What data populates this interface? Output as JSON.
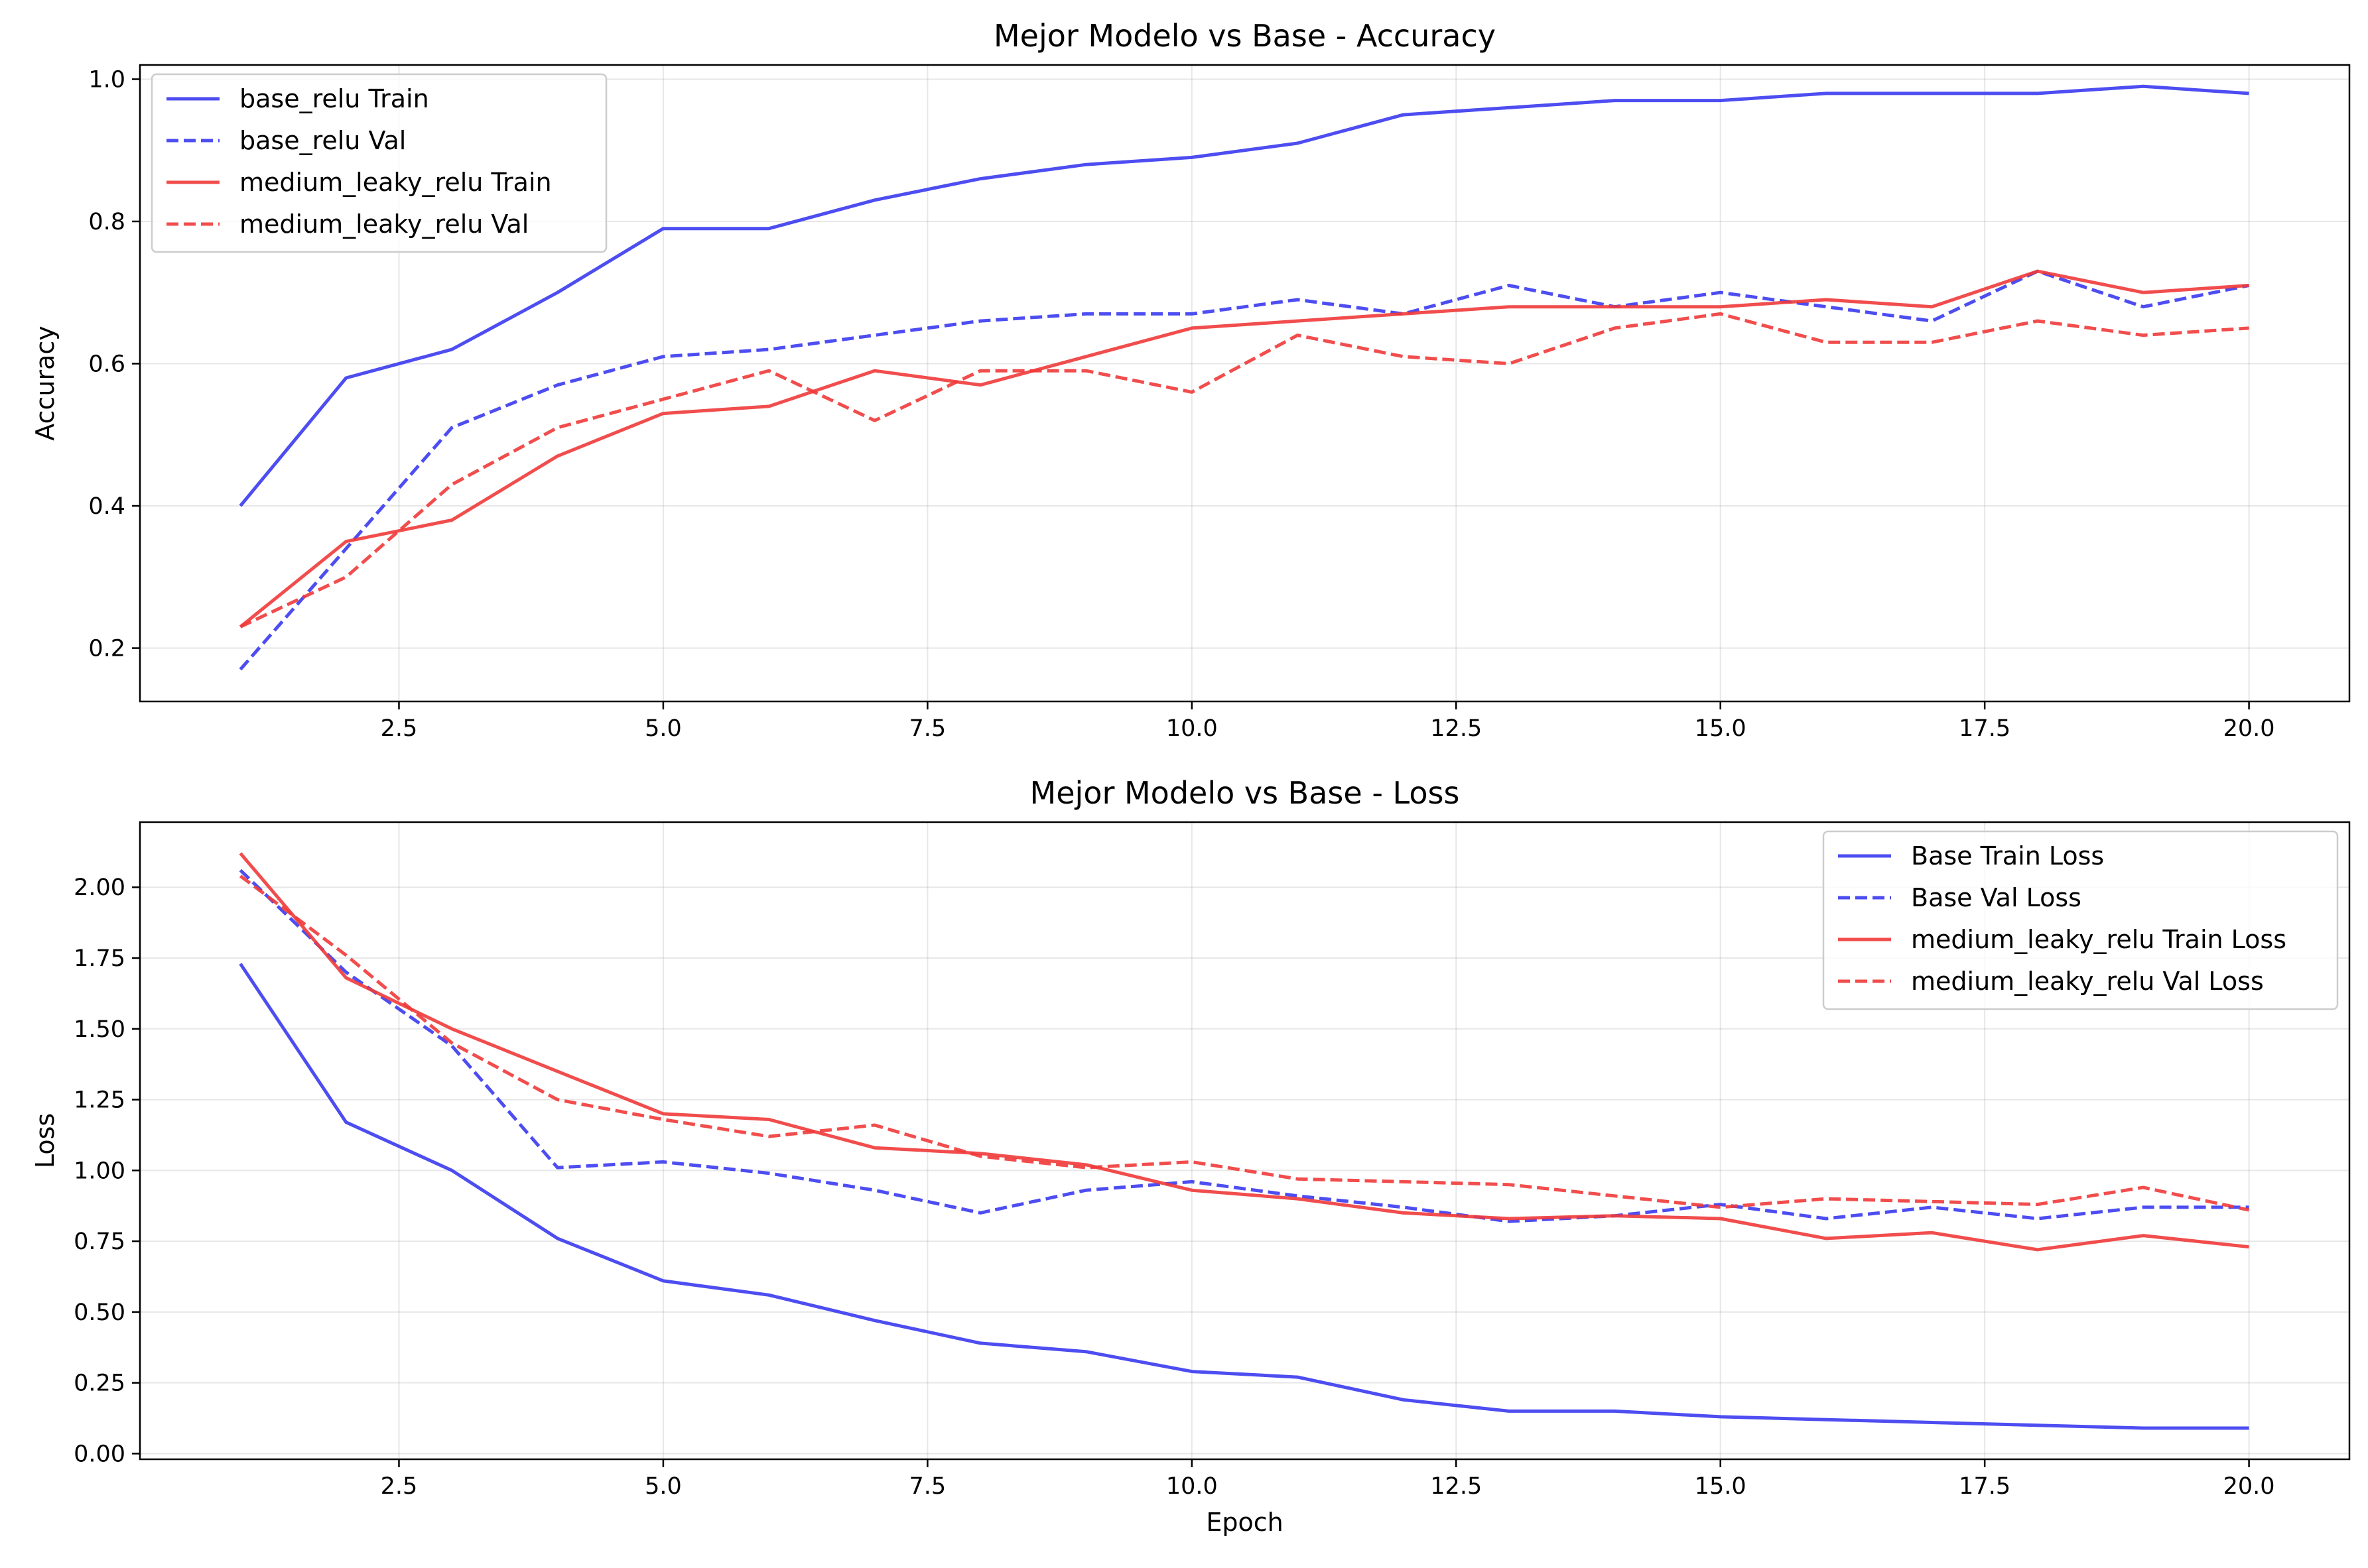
{
  "chart_data": [
    {
      "type": "line",
      "title": "Mejor Modelo vs Base - Accuracy",
      "xlabel": "",
      "ylabel": "Accuracy",
      "xlim": [
        0.05,
        20.95
      ],
      "ylim": [
        0.125,
        1.02
      ],
      "xticks": [
        2.5,
        5.0,
        7.5,
        10.0,
        12.5,
        15.0,
        17.5,
        20.0
      ],
      "xtick_labels": [
        "2.5",
        "5.0",
        "7.5",
        "10.0",
        "12.5",
        "15.0",
        "17.5",
        "20.0"
      ],
      "yticks": [
        0.2,
        0.4,
        0.6,
        0.8,
        1.0
      ],
      "ytick_labels": [
        "0.2",
        "0.4",
        "0.6",
        "0.8",
        "1.0"
      ],
      "grid": true,
      "legend_position": "top-left",
      "x": [
        1,
        2,
        3,
        4,
        5,
        6,
        7,
        8,
        9,
        10,
        11,
        12,
        13,
        14,
        15,
        16,
        17,
        18,
        19,
        20
      ],
      "series": [
        {
          "name": "base_relu Train",
          "color": "#3a3af0",
          "dash": "solid",
          "values": [
            0.4,
            0.58,
            0.62,
            0.7,
            0.79,
            0.79,
            0.83,
            0.86,
            0.88,
            0.89,
            0.91,
            0.95,
            0.96,
            0.97,
            0.97,
            0.98,
            0.98,
            0.98,
            0.99,
            0.98
          ]
        },
        {
          "name": "base_relu Val",
          "color": "#3a3af0",
          "dash": "dashed",
          "values": [
            0.17,
            0.34,
            0.51,
            0.57,
            0.61,
            0.62,
            0.64,
            0.66,
            0.67,
            0.67,
            0.69,
            0.67,
            0.71,
            0.68,
            0.7,
            0.68,
            0.66,
            0.73,
            0.68,
            0.71
          ]
        },
        {
          "name": "medium_leaky_relu Train",
          "color": "#f03a3a",
          "dash": "solid",
          "values": [
            0.23,
            0.35,
            0.38,
            0.47,
            0.53,
            0.54,
            0.59,
            0.57,
            0.61,
            0.65,
            0.66,
            0.67,
            0.68,
            0.68,
            0.68,
            0.69,
            0.68,
            0.73,
            0.7,
            0.71
          ]
        },
        {
          "name": "medium_leaky_relu Val",
          "color": "#f03a3a",
          "dash": "dashed",
          "values": [
            0.23,
            0.3,
            0.43,
            0.51,
            0.55,
            0.59,
            0.52,
            0.59,
            0.59,
            0.56,
            0.64,
            0.61,
            0.6,
            0.65,
            0.67,
            0.63,
            0.63,
            0.66,
            0.64,
            0.65
          ]
        }
      ]
    },
    {
      "type": "line",
      "title": "Mejor Modelo vs Base - Loss",
      "xlabel": "Epoch",
      "ylabel": "Loss",
      "xlim": [
        0.05,
        20.95
      ],
      "ylim": [
        -0.02,
        2.23
      ],
      "xticks": [
        2.5,
        5.0,
        7.5,
        10.0,
        12.5,
        15.0,
        17.5,
        20.0
      ],
      "xtick_labels": [
        "2.5",
        "5.0",
        "7.5",
        "10.0",
        "12.5",
        "15.0",
        "17.5",
        "20.0"
      ],
      "yticks": [
        0.0,
        0.25,
        0.5,
        0.75,
        1.0,
        1.25,
        1.5,
        1.75,
        2.0
      ],
      "ytick_labels": [
        "0.00",
        "0.25",
        "0.50",
        "0.75",
        "1.00",
        "1.25",
        "1.50",
        "1.75",
        "2.00"
      ],
      "grid": true,
      "legend_position": "top-right",
      "x": [
        1,
        2,
        3,
        4,
        5,
        6,
        7,
        8,
        9,
        10,
        11,
        12,
        13,
        14,
        15,
        16,
        17,
        18,
        19,
        20
      ],
      "series": [
        {
          "name": "Base Train Loss",
          "color": "#3a3af0",
          "dash": "solid",
          "values": [
            1.73,
            1.17,
            1.0,
            0.76,
            0.61,
            0.56,
            0.47,
            0.39,
            0.36,
            0.29,
            0.27,
            0.19,
            0.15,
            0.15,
            0.13,
            0.12,
            0.11,
            0.1,
            0.09,
            0.09
          ]
        },
        {
          "name": "Base Val Loss",
          "color": "#3a3af0",
          "dash": "dashed",
          "values": [
            2.06,
            1.7,
            1.44,
            1.01,
            1.03,
            0.99,
            0.93,
            0.85,
            0.93,
            0.96,
            0.91,
            0.87,
            0.82,
            0.84,
            0.88,
            0.83,
            0.87,
            0.83,
            0.87,
            0.87
          ]
        },
        {
          "name": "medium_leaky_relu Train Loss",
          "color": "#f03a3a",
          "dash": "solid",
          "values": [
            2.12,
            1.68,
            1.5,
            1.35,
            1.2,
            1.18,
            1.08,
            1.06,
            1.02,
            0.93,
            0.9,
            0.85,
            0.83,
            0.84,
            0.83,
            0.76,
            0.78,
            0.72,
            0.77,
            0.73
          ]
        },
        {
          "name": "medium_leaky_relu Val Loss",
          "color": "#f03a3a",
          "dash": "dashed",
          "values": [
            2.04,
            1.76,
            1.45,
            1.25,
            1.18,
            1.12,
            1.16,
            1.05,
            1.01,
            1.03,
            0.97,
            0.96,
            0.95,
            0.91,
            0.87,
            0.9,
            0.89,
            0.88,
            0.94,
            0.86
          ]
        }
      ]
    }
  ]
}
